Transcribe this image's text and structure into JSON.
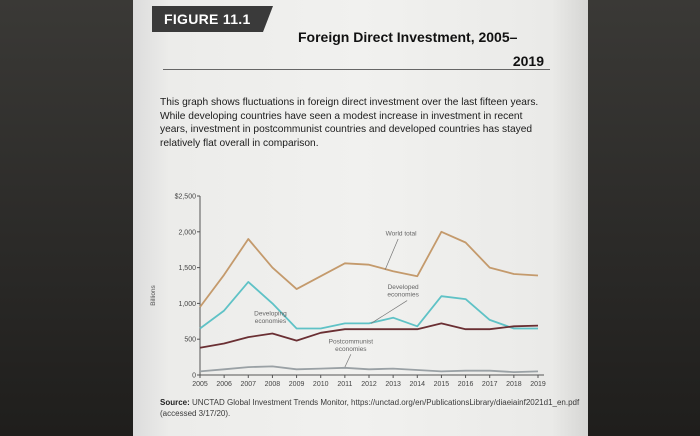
{
  "figure_label": "FIGURE 11.1",
  "title_line1": "Foreign Direct Investment, 2005–",
  "title_line2": "2019",
  "caption": "This graph shows fluctuations in foreign direct investment over the last fifteen years. While developing countries have seen a modest increase in investment in recent years, investment in postcommunist countries and developed countries has stayed relatively flat overall in comparison.",
  "source_label": "Source:",
  "source_text": "UNCTAD Global Investment Trends Monitor, https://unctad.org/en/PublicationsLibrary/diaeiainf2021d1_en.pdf (accessed 3/17/20).",
  "chart_data": {
    "type": "line",
    "ylabel": "Billions",
    "ylim": [
      0,
      2500
    ],
    "y_ticks": [
      0,
      500,
      1000,
      1500,
      2000,
      2500
    ],
    "y_tick_labels": [
      "0",
      "500",
      "1,000",
      "1,500",
      "2,000",
      "$2,500"
    ],
    "x": [
      2005,
      2006,
      2007,
      2008,
      2009,
      2010,
      2011,
      2012,
      2013,
      2014,
      2015,
      2016,
      2017,
      2018,
      2019
    ],
    "series": [
      {
        "name": "World total",
        "color": "#c49a6c",
        "values": [
          950,
          1400,
          1900,
          1500,
          1200,
          1380,
          1560,
          1540,
          1450,
          1380,
          2000,
          1850,
          1500,
          1410,
          1390
        ]
      },
      {
        "name": "Developed economies",
        "color": "#5fc2c6",
        "values": [
          650,
          900,
          1300,
          1000,
          650,
          650,
          720,
          720,
          800,
          680,
          1100,
          1060,
          770,
          650,
          650
        ]
      },
      {
        "name": "Developing economies",
        "color": "#6a2f33",
        "values": [
          380,
          440,
          530,
          580,
          480,
          590,
          640,
          640,
          640,
          640,
          720,
          640,
          640,
          680,
          690
        ]
      },
      {
        "name": "Postcommunist economies",
        "color": "#9aa1a5",
        "values": [
          50,
          80,
          110,
          120,
          80,
          90,
          100,
          80,
          90,
          70,
          50,
          60,
          60,
          40,
          50
        ]
      }
    ],
    "annotations": {
      "world": "World total",
      "developed": "Developed economies",
      "developing": "Developing economies",
      "postcommunist": "Postcommunist economies"
    }
  }
}
